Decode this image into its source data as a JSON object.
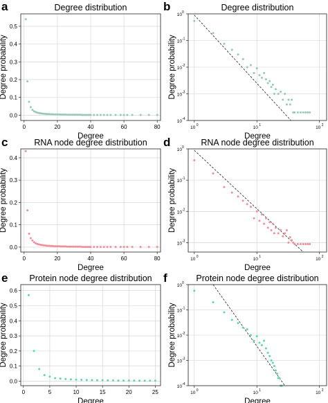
{
  "panels": [
    {
      "label": "a",
      "title": "Degree distribution",
      "xlabel": "Degree",
      "ylabel": "Degree probability"
    },
    {
      "label": "b",
      "title": "Degree distribution",
      "xlabel": "Degree",
      "ylabel": "Degree probability"
    },
    {
      "label": "c",
      "title": "RNA node degree distribution",
      "xlabel": "Degree",
      "ylabel": "Degree probability"
    },
    {
      "label": "d",
      "title": "RNA node degree distribution",
      "xlabel": "Degree",
      "ylabel": "Degree probability"
    },
    {
      "label": "e",
      "title": "Protein node degree distribution",
      "xlabel": "Degree",
      "ylabel": "Degree probability"
    },
    {
      "label": "f",
      "title": "Protein node degree distribution",
      "xlabel": "Degree",
      "ylabel": "Degree probability"
    }
  ],
  "chart_data": [
    {
      "type": "scatter",
      "title": "Degree distribution",
      "xlabel": "Degree",
      "ylabel": "Degree probability",
      "xscale": "linear",
      "yscale": "linear",
      "xlim": [
        -2,
        82
      ],
      "ylim": [
        -0.03,
        0.57
      ],
      "xticks": [
        0,
        20,
        40,
        60,
        80
      ],
      "yticks": [
        0.0,
        0.1,
        0.2,
        0.3,
        0.4,
        0.5
      ],
      "grid": true,
      "color": "#97c9b3",
      "x": [
        1,
        2,
        3,
        4,
        5,
        6,
        7,
        8,
        9,
        10,
        11,
        12,
        13,
        14,
        15,
        16,
        17,
        18,
        19,
        20,
        21,
        22,
        23,
        24,
        25,
        26,
        27,
        28,
        29,
        30,
        31,
        32,
        33,
        34,
        35,
        36,
        37,
        38,
        39,
        40,
        42,
        44,
        46,
        48,
        50,
        52,
        55,
        58,
        60,
        62,
        65,
        70,
        75,
        80
      ],
      "y": [
        0.54,
        0.19,
        0.075,
        0.045,
        0.03,
        0.022,
        0.017,
        0.014,
        0.012,
        0.01,
        0.009,
        0.008,
        0.007,
        0.006,
        0.006,
        0.005,
        0.005,
        0.004,
        0.004,
        0.004,
        0.004,
        0.003,
        0.003,
        0.003,
        0.003,
        0.002,
        0.002,
        0.002,
        0.002,
        0.002,
        0.002,
        0.002,
        0.002,
        0.002,
        0.001,
        0.001,
        0.001,
        0.001,
        0.001,
        0.001,
        0.001,
        0.001,
        0.001,
        0.001,
        0.001,
        0.001,
        0.001,
        0.001,
        0.001,
        0.001,
        0.001,
        0.001,
        0.001,
        0.001
      ]
    },
    {
      "type": "scatter",
      "title": "Degree distribution",
      "xlabel": "Degree",
      "ylabel": "Degree probability",
      "xscale": "log",
      "yscale": "log",
      "xlim": [
        0.8,
        130
      ],
      "ylim": [
        0.0001,
        1
      ],
      "xticks": [
        1,
        10,
        100
      ],
      "yticks": [
        0.0001,
        0.001,
        0.01,
        0.1,
        1
      ],
      "grid": true,
      "color": "#97c9b3",
      "fit_line": {
        "x": [
          1,
          35
        ],
        "y": [
          0.9,
          0.0001
        ]
      },
      "x": [
        1,
        2,
        3,
        4,
        5,
        6,
        7,
        8,
        9,
        10,
        11,
        12,
        13,
        14,
        15,
        16,
        17,
        18,
        19,
        20,
        22,
        24,
        26,
        28,
        30,
        32,
        34,
        36,
        38,
        40,
        45,
        50,
        55,
        60,
        65,
        70
      ],
      "y": [
        0.54,
        0.19,
        0.075,
        0.045,
        0.03,
        0.02,
        0.01,
        0.012,
        0.006,
        0.009,
        0.005,
        0.004,
        0.006,
        0.0035,
        0.0025,
        0.003,
        0.0018,
        0.0022,
        0.001,
        0.0015,
        0.001,
        0.0012,
        0.0006,
        0.001,
        0.0004,
        0.0006,
        0.0004,
        0.0006,
        0.0002,
        0.0002,
        0.0002,
        0.0002,
        0.0002,
        0.0002,
        0.0002,
        0.0002
      ]
    },
    {
      "type": "scatter",
      "title": "RNA node degree distribution",
      "xlabel": "Degree",
      "ylabel": "Degree probability",
      "xscale": "linear",
      "yscale": "linear",
      "xlim": [
        -2,
        82
      ],
      "ylim": [
        -0.022,
        0.44
      ],
      "xticks": [
        0,
        20,
        40,
        60,
        80
      ],
      "yticks": [
        0.0,
        0.1,
        0.2,
        0.3,
        0.4
      ],
      "grid": true,
      "color": "#ee8f9c",
      "x": [
        1,
        2,
        3,
        4,
        5,
        6,
        7,
        8,
        9,
        10,
        11,
        12,
        13,
        14,
        15,
        16,
        17,
        18,
        19,
        20,
        21,
        22,
        23,
        24,
        25,
        26,
        27,
        28,
        29,
        30,
        31,
        32,
        33,
        34,
        35,
        36,
        37,
        38,
        39,
        40,
        42,
        44,
        46,
        48,
        50,
        52,
        55,
        58,
        60,
        62,
        65,
        70,
        75,
        80
      ],
      "y": [
        0.43,
        0.165,
        0.06,
        0.04,
        0.03,
        0.022,
        0.017,
        0.014,
        0.012,
        0.01,
        0.009,
        0.008,
        0.007,
        0.006,
        0.006,
        0.005,
        0.005,
        0.004,
        0.004,
        0.004,
        0.004,
        0.003,
        0.003,
        0.003,
        0.003,
        0.002,
        0.002,
        0.002,
        0.002,
        0.002,
        0.002,
        0.002,
        0.002,
        0.002,
        0.001,
        0.001,
        0.001,
        0.001,
        0.001,
        0.001,
        0.001,
        0.001,
        0.001,
        0.001,
        0.001,
        0.001,
        0.001,
        0.001,
        0.001,
        0.001,
        0.001,
        0.001,
        0.001,
        0.001
      ]
    },
    {
      "type": "scatter",
      "title": "RNA node degree distribution",
      "xlabel": "Degree",
      "ylabel": "Degree probability",
      "xscale": "log",
      "yscale": "log",
      "xlim": [
        0.8,
        130
      ],
      "ylim": [
        0.0005,
        1
      ],
      "xticks": [
        1,
        10,
        100
      ],
      "yticks": [
        0.001,
        0.01,
        0.1,
        1
      ],
      "grid": true,
      "color": "#ee8f9c",
      "fit_line": {
        "x": [
          1,
          55
        ],
        "y": [
          0.9,
          0.0005
        ]
      },
      "x": [
        1,
        2,
        3,
        4,
        5,
        6,
        7,
        8,
        9,
        10,
        11,
        12,
        13,
        14,
        15,
        16,
        17,
        18,
        19,
        20,
        22,
        24,
        26,
        28,
        30,
        32,
        34,
        36,
        38,
        40,
        45,
        50,
        55,
        60,
        65,
        70
      ],
      "y": [
        0.43,
        0.165,
        0.06,
        0.04,
        0.03,
        0.022,
        0.017,
        0.014,
        0.006,
        0.01,
        0.005,
        0.008,
        0.004,
        0.006,
        0.003,
        0.0045,
        0.0025,
        0.004,
        0.002,
        0.003,
        0.002,
        0.0025,
        0.0016,
        0.002,
        0.0025,
        0.001,
        0.0015,
        0.0012,
        0.001,
        0.0009,
        0.0009,
        0.0009,
        0.0009,
        0.0009,
        0.0009,
        0.0009
      ]
    },
    {
      "type": "scatter",
      "title": "Protein node degree distribution",
      "xlabel": "Degree",
      "ylabel": "Degree probability",
      "xscale": "linear",
      "yscale": "linear",
      "xlim": [
        -0.5,
        26
      ],
      "ylim": [
        -0.03,
        0.64
      ],
      "xticks": [
        0,
        5,
        10,
        15,
        20,
        25
      ],
      "yticks": [
        0.0,
        0.1,
        0.2,
        0.3,
        0.4,
        0.5,
        0.6
      ],
      "grid": true,
      "color": "#5ed6b0",
      "x": [
        1,
        2,
        3,
        4,
        5,
        6,
        7,
        8,
        9,
        10,
        11,
        12,
        13,
        14,
        15,
        16,
        17,
        18,
        19,
        20,
        21,
        22,
        23,
        24,
        25
      ],
      "y": [
        0.57,
        0.2,
        0.08,
        0.04,
        0.03,
        0.02,
        0.017,
        0.014,
        0.012,
        0.01,
        0.009,
        0.008,
        0.007,
        0.006,
        0.006,
        0.005,
        0.005,
        0.004,
        0.004,
        0.004,
        0.004,
        0.003,
        0.003,
        0.003,
        0.003
      ]
    },
    {
      "type": "scatter",
      "title": "Protein node degree distribution",
      "xlabel": "Degree",
      "ylabel": "Degree probability",
      "xscale": "log",
      "yscale": "log",
      "xlim": [
        0.8,
        130
      ],
      "ylim": [
        0.0001,
        1
      ],
      "xticks": [
        1,
        10,
        100
      ],
      "yticks": [
        0.0001,
        0.001,
        0.01,
        0.1,
        1
      ],
      "grid": true,
      "color": "#5ed6b0",
      "fit_line": {
        "x": [
          2,
          28
        ],
        "y": [
          1,
          0.0001
        ]
      },
      "x": [
        1,
        2,
        3,
        4,
        5,
        6,
        7,
        8,
        9,
        10,
        11,
        12,
        13,
        14,
        15,
        16,
        17,
        18,
        19,
        20,
        21,
        22,
        23,
        24,
        25
      ],
      "y": [
        0.57,
        0.2,
        0.08,
        0.04,
        0.03,
        0.02,
        0.017,
        0.01,
        0.006,
        0.009,
        0.005,
        0.004,
        0.006,
        0.003,
        0.002,
        0.0015,
        0.001,
        0.0008,
        0.0006,
        0.0004,
        0.0003,
        0.0002,
        0.0002,
        0.0001,
        0.0001
      ]
    }
  ]
}
